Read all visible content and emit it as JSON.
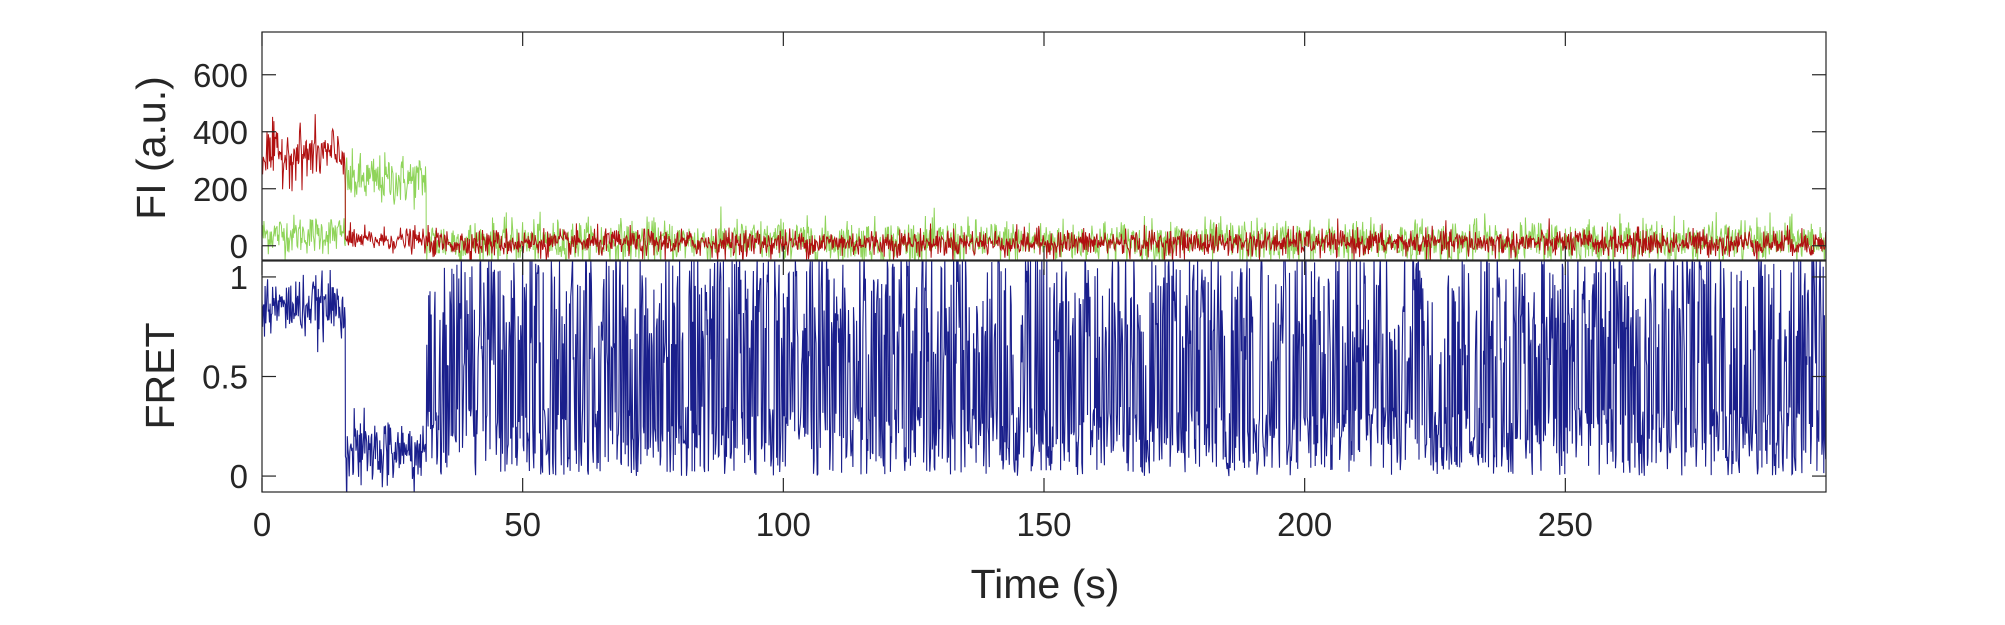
{
  "chart_data": [
    {
      "type": "line",
      "panel": "top",
      "ylabel": "FI (a.u.)",
      "xlim": [
        0,
        300
      ],
      "ylim": [
        -50,
        750
      ],
      "yticks": [
        0,
        200,
        400,
        600
      ],
      "ytick_labels": [
        "0",
        "200",
        "400",
        "600"
      ],
      "grid": false,
      "series": [
        {
          "color": "#8FD45A",
          "segments": [
            {
              "x": [
                0,
                16
              ],
              "mean": 40,
              "noise": 45
            },
            {
              "x": [
                16,
                31.5
              ],
              "mean": 230,
              "noise": 60
            },
            {
              "x": [
                31.5,
                300
              ],
              "mean": 15,
              "noise": 50
            }
          ]
        },
        {
          "color": "#B01010",
          "segments": [
            {
              "x": [
                0,
                16
              ],
              "mean": 320,
              "noise": 65
            },
            {
              "x": [
                16,
                31.5
              ],
              "mean": 20,
              "noise": 28
            },
            {
              "x": [
                31.5,
                300
              ],
              "mean": 10,
              "noise": 32
            }
          ]
        }
      ]
    },
    {
      "type": "line",
      "panel": "bottom",
      "ylabel": "FRET",
      "xlabel": "Time (s)",
      "xlim": [
        0,
        300
      ],
      "ylim": [
        -0.08,
        1.08
      ],
      "yticks": [
        0,
        0.5,
        1
      ],
      "ytick_labels": [
        "0",
        "0.5",
        "1"
      ],
      "xticks": [
        0,
        50,
        100,
        150,
        200,
        250
      ],
      "xtick_labels": [
        "0",
        "50",
        "100",
        "150",
        "200",
        "250"
      ],
      "grid": false,
      "series": [
        {
          "color": "#1A1F8C",
          "segments": [
            {
              "x": [
                0,
                16
              ],
              "mean": 0.85,
              "noise": 0.1
            },
            {
              "x": [
                16,
                31.5
              ],
              "mean": 0.12,
              "noise": 0.12
            },
            {
              "x": [
                31.5,
                300
              ],
              "mean": 0.55,
              "noise": 0.55
            }
          ]
        }
      ]
    }
  ]
}
